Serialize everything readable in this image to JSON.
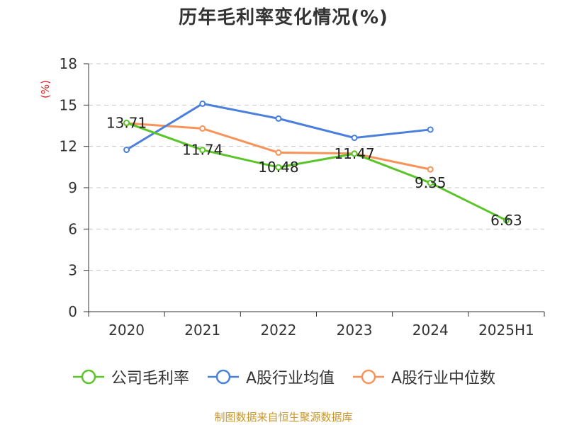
{
  "chart_data": {
    "type": "line",
    "title": "历年毛利率变化情况(%)",
    "ylabel": "(%)",
    "xlabel": "",
    "categories": [
      "2020",
      "2021",
      "2022",
      "2023",
      "2024",
      "2025H1"
    ],
    "ylim": [
      0,
      18
    ],
    "yticks": [
      0,
      3,
      6,
      9,
      12,
      15,
      18
    ],
    "grid": true,
    "legend_position": "bottom",
    "series": [
      {
        "name": "公司毛利率",
        "color": "#5bc428",
        "values": [
          13.71,
          11.74,
          10.48,
          11.47,
          9.35,
          6.63
        ],
        "labels": [
          "13.71",
          "11.74",
          "10.48",
          "11.47",
          "9.35",
          "6.63"
        ]
      },
      {
        "name": "A股行业均值",
        "color": "#4a7fdc",
        "values": [
          11.75,
          15.1,
          14.02,
          12.62,
          13.22,
          null
        ]
      },
      {
        "name": "A股行业中位数",
        "color": "#f79359",
        "values": [
          13.68,
          13.3,
          11.55,
          11.48,
          10.33,
          null
        ]
      }
    ]
  },
  "legend": {
    "items": [
      {
        "label": "公司毛利率",
        "color": "#5bc428"
      },
      {
        "label": "A股行业均值",
        "color": "#4a7fdc"
      },
      {
        "label": "A股行业中位数",
        "color": "#f79359"
      }
    ]
  },
  "source": "制图数据来自恒生聚源数据库"
}
